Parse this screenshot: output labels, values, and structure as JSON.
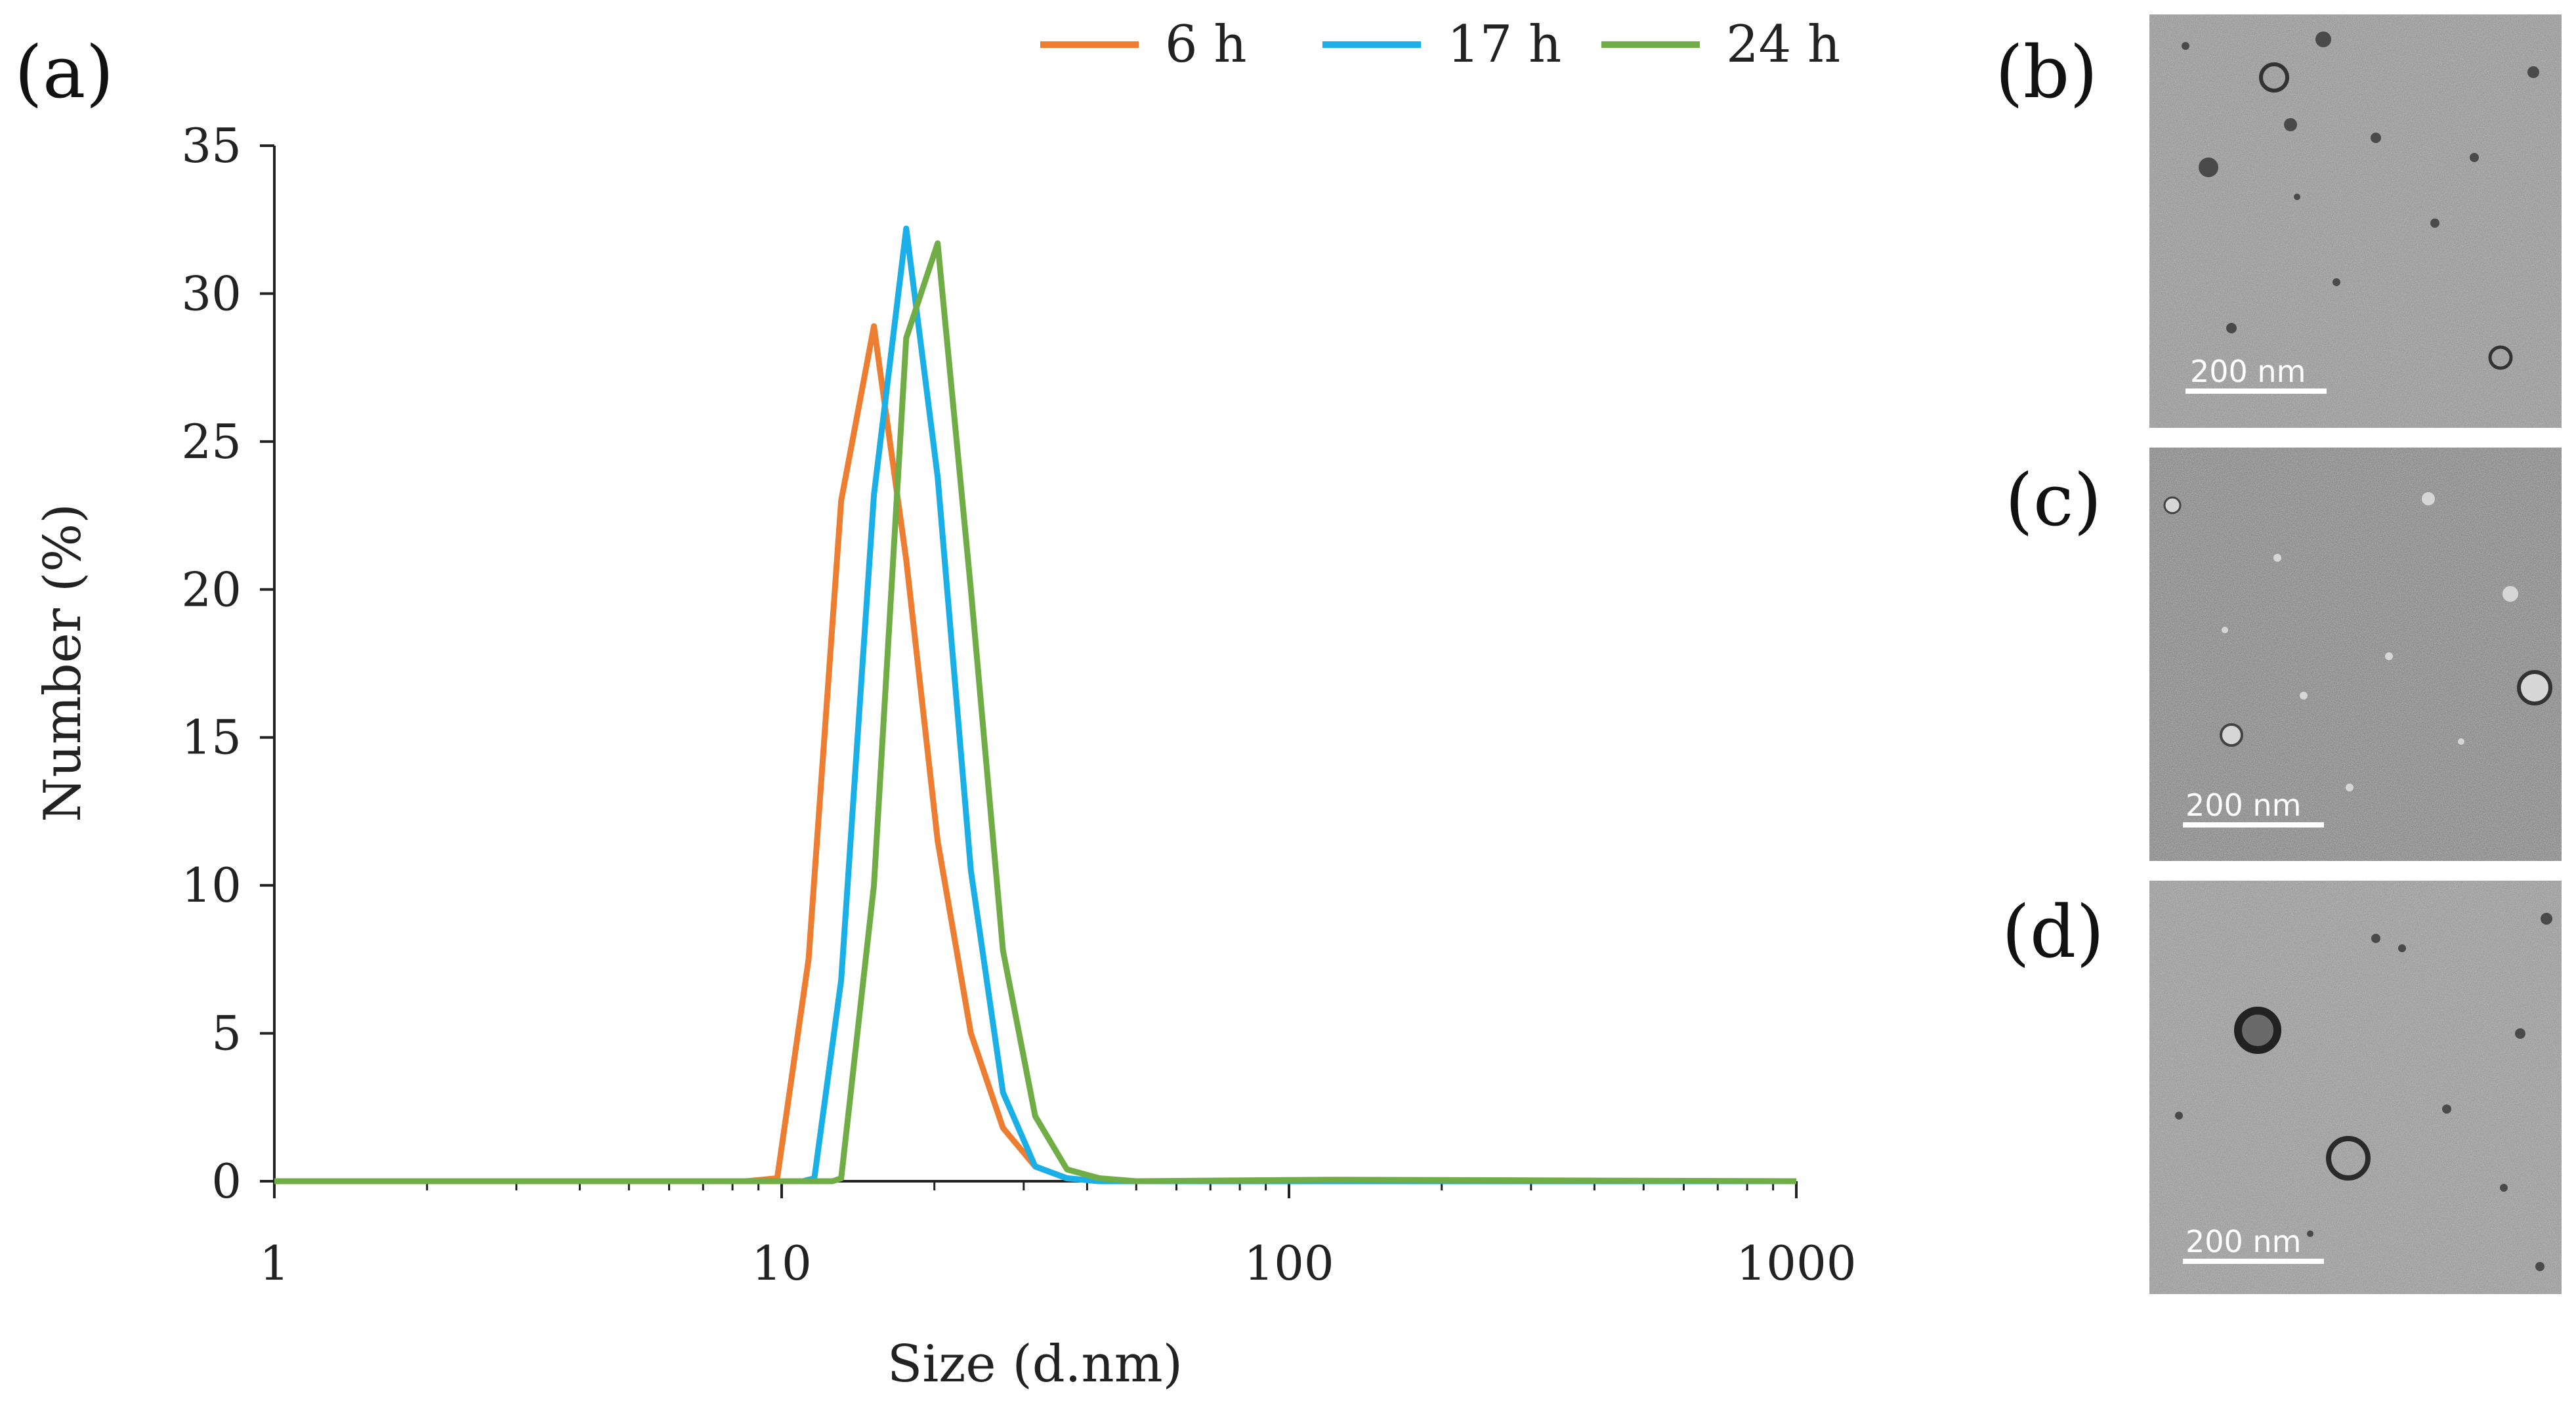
{
  "panels": {
    "a": "(a)",
    "b": "(b)",
    "c": "(c)",
    "d": "(d)"
  },
  "chart_data": {
    "type": "line",
    "xlabel": "Size (d.nm)",
    "ylabel": "Number (%)",
    "xscale": "log",
    "xlim": [
      1,
      1000
    ],
    "ylim": [
      0,
      35
    ],
    "xticks": [
      1,
      10,
      100,
      1000
    ],
    "xtick_labels": [
      "1",
      "10",
      "100",
      "1000"
    ],
    "yticks": [
      0,
      5,
      10,
      15,
      20,
      25,
      30,
      35
    ],
    "ytick_labels": [
      "0",
      "5",
      "10",
      "15",
      "20",
      "25",
      "30",
      "35"
    ],
    "grid": false,
    "legend_position": "top",
    "series": [
      {
        "name": "6 h",
        "color": "#ed7d31",
        "points": [
          [
            1,
            0
          ],
          [
            8.5,
            0
          ],
          [
            9.8,
            0.1
          ],
          [
            11.3,
            7.5
          ],
          [
            13.1,
            23
          ],
          [
            15.2,
            28.9
          ],
          [
            17.6,
            21
          ],
          [
            20.3,
            11.5
          ],
          [
            23.6,
            5
          ],
          [
            27.3,
            1.8
          ],
          [
            31.6,
            0.5
          ],
          [
            36.5,
            0.1
          ],
          [
            42.3,
            0
          ],
          [
            100,
            0
          ],
          [
            1000,
            0
          ]
        ]
      },
      {
        "name": "17 h",
        "color": "#1aafe6",
        "points": [
          [
            1,
            0
          ],
          [
            11,
            0
          ],
          [
            11.6,
            0.1
          ],
          [
            13.1,
            6.8
          ],
          [
            15.2,
            23.2
          ],
          [
            17.6,
            32.2
          ],
          [
            20.3,
            23.8
          ],
          [
            23.6,
            10.5
          ],
          [
            27.3,
            3
          ],
          [
            31.6,
            0.5
          ],
          [
            36.5,
            0.1
          ],
          [
            42.3,
            0
          ],
          [
            100,
            0
          ],
          [
            1000,
            0
          ]
        ]
      },
      {
        "name": "24 h",
        "color": "#70ad47",
        "points": [
          [
            1,
            0
          ],
          [
            12.6,
            0
          ],
          [
            13.1,
            0.1
          ],
          [
            15.2,
            10
          ],
          [
            17.6,
            28.5
          ],
          [
            20.3,
            31.7
          ],
          [
            23.6,
            20
          ],
          [
            27.3,
            7.8
          ],
          [
            31.6,
            2.2
          ],
          [
            36.5,
            0.4
          ],
          [
            42.3,
            0.1
          ],
          [
            50,
            0
          ],
          [
            120,
            0.05
          ],
          [
            1000,
            0
          ]
        ]
      }
    ]
  },
  "micrographs": [
    {
      "panel": "b",
      "scale_text": "200 nm"
    },
    {
      "panel": "c",
      "scale_text": "200 nm"
    },
    {
      "panel": "d",
      "scale_text": "200 nm"
    }
  ]
}
